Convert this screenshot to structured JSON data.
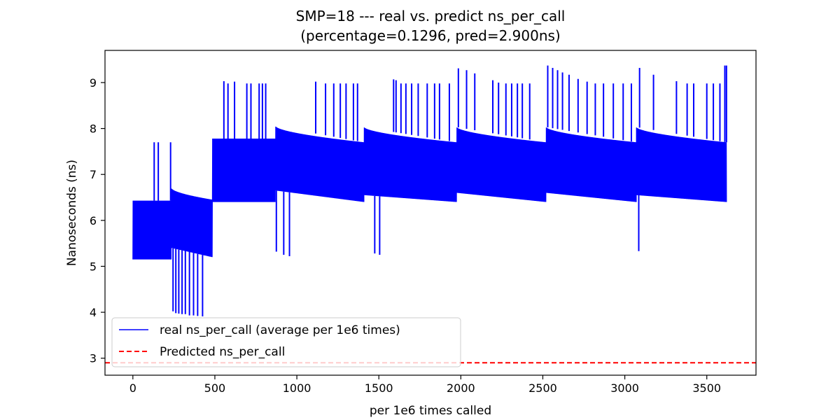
{
  "chart_data": {
    "type": "line",
    "title": "SMP=18 --- real vs. predict ns_per_call",
    "subtitle": "(percentage=0.1296, pred=2.900ns)",
    "xlabel": "per 1e6 times called",
    "ylabel": "Nanoseconds (ns)",
    "xlim": [
      -170,
      3800
    ],
    "ylim": [
      2.63,
      9.7
    ],
    "xticks": [
      0,
      500,
      1000,
      1500,
      2000,
      2500,
      3000,
      3500
    ],
    "yticks": [
      3,
      4,
      5,
      6,
      7,
      8,
      9
    ],
    "grid": false,
    "legend_position": "lower-left",
    "colors": {
      "real": "#0000ff",
      "predicted": "#ff0000"
    },
    "series": [
      {
        "name": "real ns_per_call (average per 1e6 times)",
        "style": "solid",
        "segments": [
          {
            "x_range": [
              0,
              235
            ],
            "low": 5.15,
            "high": 6.43
          },
          {
            "x_range": [
              235,
              485
            ],
            "low_start": 5.4,
            "low_end": 5.2,
            "high_start": 6.7,
            "high_end": 6.45
          },
          {
            "x_range": [
              485,
              870
            ],
            "low": 6.4,
            "high": 7.78
          },
          {
            "x_range": [
              870,
              1410
            ],
            "low_start": 6.65,
            "low_end": 6.4,
            "high_start": 8.05,
            "high_end": 7.7
          },
          {
            "x_range": [
              1410,
              1975
            ],
            "low_start": 6.55,
            "low_end": 6.4,
            "high_start": 8.03,
            "high_end": 7.7
          },
          {
            "x_range": [
              1975,
              2520
            ],
            "low_start": 6.6,
            "low_end": 6.4,
            "high_start": 8.03,
            "high_end": 7.7
          },
          {
            "x_range": [
              2520,
              3070
            ],
            "low_start": 6.6,
            "low_end": 6.4,
            "high_start": 8.03,
            "high_end": 7.7
          },
          {
            "x_range": [
              3070,
              3620
            ],
            "low_start": 6.55,
            "low_end": 6.4,
            "high_start": 8.03,
            "high_end": 7.7
          }
        ],
        "spikes": [
          {
            "x": 130,
            "y": 7.7
          },
          {
            "x": 155,
            "y": 7.7
          },
          {
            "x": 230,
            "y": 7.7
          },
          {
            "x": 245,
            "y": 4.02
          },
          {
            "x": 262,
            "y": 3.98
          },
          {
            "x": 280,
            "y": 3.97
          },
          {
            "x": 300,
            "y": 3.96
          },
          {
            "x": 320,
            "y": 3.96
          },
          {
            "x": 345,
            "y": 3.93
          },
          {
            "x": 370,
            "y": 3.93
          },
          {
            "x": 395,
            "y": 3.92
          },
          {
            "x": 425,
            "y": 3.91
          },
          {
            "x": 555,
            "y": 9.03
          },
          {
            "x": 580,
            "y": 8.98
          },
          {
            "x": 620,
            "y": 9.02
          },
          {
            "x": 695,
            "y": 8.98
          },
          {
            "x": 720,
            "y": 8.98
          },
          {
            "x": 770,
            "y": 8.98
          },
          {
            "x": 790,
            "y": 8.98
          },
          {
            "x": 810,
            "y": 8.98
          },
          {
            "x": 875,
            "y": 5.32
          },
          {
            "x": 920,
            "y": 5.25
          },
          {
            "x": 955,
            "y": 5.22
          },
          {
            "x": 1115,
            "y": 9.02
          },
          {
            "x": 1175,
            "y": 8.98
          },
          {
            "x": 1225,
            "y": 8.98
          },
          {
            "x": 1265,
            "y": 8.98
          },
          {
            "x": 1300,
            "y": 8.98
          },
          {
            "x": 1345,
            "y": 8.98
          },
          {
            "x": 1370,
            "y": 8.98
          },
          {
            "x": 1475,
            "y": 5.28
          },
          {
            "x": 1505,
            "y": 5.25
          },
          {
            "x": 1590,
            "y": 9.07
          },
          {
            "x": 1605,
            "y": 9.05
          },
          {
            "x": 1635,
            "y": 8.98
          },
          {
            "x": 1665,
            "y": 8.98
          },
          {
            "x": 1700,
            "y": 8.98
          },
          {
            "x": 1740,
            "y": 8.98
          },
          {
            "x": 1795,
            "y": 8.98
          },
          {
            "x": 1840,
            "y": 8.98
          },
          {
            "x": 1870,
            "y": 8.98
          },
          {
            "x": 1930,
            "y": 8.98
          },
          {
            "x": 1985,
            "y": 9.31
          },
          {
            "x": 2035,
            "y": 9.27
          },
          {
            "x": 2085,
            "y": 9.2
          },
          {
            "x": 2195,
            "y": 9.05
          },
          {
            "x": 2230,
            "y": 9.0
          },
          {
            "x": 2275,
            "y": 8.98
          },
          {
            "x": 2310,
            "y": 8.98
          },
          {
            "x": 2345,
            "y": 8.98
          },
          {
            "x": 2375,
            "y": 8.98
          },
          {
            "x": 2420,
            "y": 8.98
          },
          {
            "x": 2530,
            "y": 9.37
          },
          {
            "x": 2560,
            "y": 9.32
          },
          {
            "x": 2590,
            "y": 9.27
          },
          {
            "x": 2620,
            "y": 9.22
          },
          {
            "x": 2660,
            "y": 9.17
          },
          {
            "x": 2715,
            "y": 9.08
          },
          {
            "x": 2770,
            "y": 9.02
          },
          {
            "x": 2820,
            "y": 8.98
          },
          {
            "x": 2870,
            "y": 8.98
          },
          {
            "x": 2930,
            "y": 8.98
          },
          {
            "x": 2990,
            "y": 8.98
          },
          {
            "x": 3040,
            "y": 8.98
          },
          {
            "x": 3090,
            "y": 9.32
          },
          {
            "x": 3085,
            "y": 5.33
          },
          {
            "x": 3175,
            "y": 9.17
          },
          {
            "x": 3315,
            "y": 9.03
          },
          {
            "x": 3380,
            "y": 8.98
          },
          {
            "x": 3420,
            "y": 8.98
          },
          {
            "x": 3500,
            "y": 8.98
          },
          {
            "x": 3540,
            "y": 8.98
          },
          {
            "x": 3580,
            "y": 8.98
          },
          {
            "x": 3610,
            "y": 9.37
          },
          {
            "x": 3620,
            "y": 9.37
          }
        ]
      },
      {
        "name": "Predicted ns_per_call",
        "style": "dashed",
        "value": 2.9
      }
    ]
  }
}
